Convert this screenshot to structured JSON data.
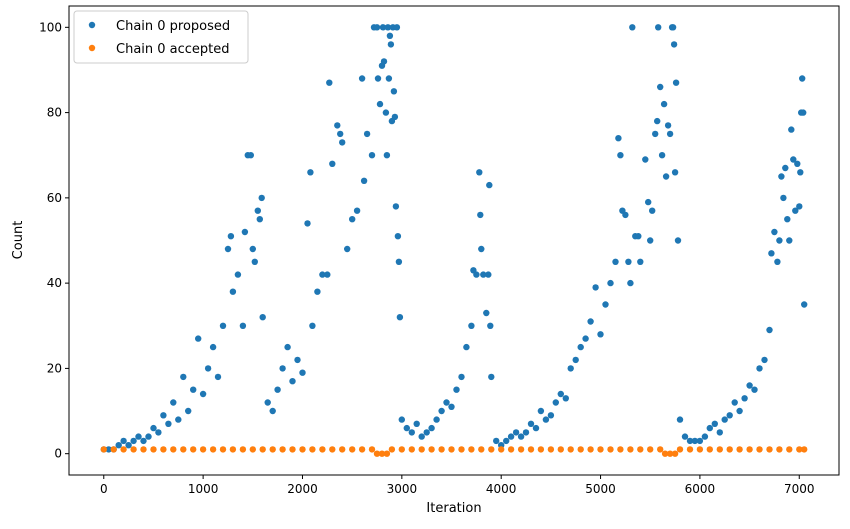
{
  "chart_data": {
    "type": "scatter",
    "title": "",
    "xlabel": "Iteration",
    "ylabel": "Count",
    "xlim": [
      -350,
      7400
    ],
    "ylim": [
      -5,
      105
    ],
    "xticks": [
      0,
      1000,
      2000,
      3000,
      4000,
      5000,
      6000,
      7000
    ],
    "yticks": [
      0,
      20,
      40,
      60,
      80,
      100
    ],
    "grid": false,
    "legend_position": "top-left",
    "series": [
      {
        "name": "Chain 0 proposed",
        "color": "#1f77b4",
        "marker": "circle",
        "points": [
          [
            0,
            1
          ],
          [
            50,
            1
          ],
          [
            100,
            1
          ],
          [
            150,
            2
          ],
          [
            200,
            3
          ],
          [
            250,
            2
          ],
          [
            300,
            3
          ],
          [
            350,
            4
          ],
          [
            400,
            3
          ],
          [
            450,
            4
          ],
          [
            500,
            6
          ],
          [
            550,
            5
          ],
          [
            600,
            9
          ],
          [
            650,
            7
          ],
          [
            700,
            12
          ],
          [
            750,
            8
          ],
          [
            800,
            18
          ],
          [
            850,
            10
          ],
          [
            900,
            15
          ],
          [
            950,
            27
          ],
          [
            1000,
            14
          ],
          [
            1050,
            20
          ],
          [
            1100,
            25
          ],
          [
            1150,
            18
          ],
          [
            1200,
            30
          ],
          [
            1250,
            48
          ],
          [
            1280,
            51
          ],
          [
            1300,
            38
          ],
          [
            1350,
            42
          ],
          [
            1400,
            30
          ],
          [
            1420,
            52
          ],
          [
            1450,
            70
          ],
          [
            1480,
            70
          ],
          [
            1500,
            48
          ],
          [
            1520,
            45
          ],
          [
            1550,
            57
          ],
          [
            1570,
            55
          ],
          [
            1590,
            60
          ],
          [
            1600,
            32
          ],
          [
            1650,
            12
          ],
          [
            1700,
            10
          ],
          [
            1750,
            15
          ],
          [
            1800,
            20
          ],
          [
            1850,
            25
          ],
          [
            1900,
            17
          ],
          [
            1950,
            22
          ],
          [
            2000,
            19
          ],
          [
            2050,
            54
          ],
          [
            2080,
            66
          ],
          [
            2100,
            30
          ],
          [
            2150,
            38
          ],
          [
            2200,
            42
          ],
          [
            2250,
            42
          ],
          [
            2270,
            87
          ],
          [
            2300,
            68
          ],
          [
            2350,
            77
          ],
          [
            2380,
            75
          ],
          [
            2400,
            73
          ],
          [
            2450,
            48
          ],
          [
            2500,
            55
          ],
          [
            2550,
            57
          ],
          [
            2600,
            88
          ],
          [
            2620,
            64
          ],
          [
            2650,
            75
          ],
          [
            2700,
            70
          ],
          [
            2720,
            100
          ],
          [
            2750,
            100
          ],
          [
            2760,
            88
          ],
          [
            2780,
            82
          ],
          [
            2800,
            91
          ],
          [
            2810,
            100
          ],
          [
            2820,
            92
          ],
          [
            2840,
            80
          ],
          [
            2850,
            70
          ],
          [
            2860,
            100
          ],
          [
            2870,
            88
          ],
          [
            2880,
            98
          ],
          [
            2890,
            96
          ],
          [
            2900,
            78
          ],
          [
            2910,
            100
          ],
          [
            2920,
            85
          ],
          [
            2930,
            79
          ],
          [
            2940,
            58
          ],
          [
            2950,
            100
          ],
          [
            2960,
            51
          ],
          [
            2970,
            45
          ],
          [
            2980,
            32
          ],
          [
            3000,
            8
          ],
          [
            3050,
            6
          ],
          [
            3100,
            5
          ],
          [
            3150,
            7
          ],
          [
            3200,
            4
          ],
          [
            3250,
            5
          ],
          [
            3300,
            6
          ],
          [
            3350,
            8
          ],
          [
            3400,
            10
          ],
          [
            3450,
            12
          ],
          [
            3500,
            11
          ],
          [
            3550,
            15
          ],
          [
            3600,
            18
          ],
          [
            3650,
            25
          ],
          [
            3700,
            30
          ],
          [
            3720,
            43
          ],
          [
            3750,
            42
          ],
          [
            3780,
            66
          ],
          [
            3790,
            56
          ],
          [
            3800,
            48
          ],
          [
            3820,
            42
          ],
          [
            3850,
            33
          ],
          [
            3870,
            42
          ],
          [
            3880,
            63
          ],
          [
            3890,
            30
          ],
          [
            3900,
            18
          ],
          [
            3950,
            3
          ],
          [
            4000,
            2
          ],
          [
            4050,
            3
          ],
          [
            4100,
            4
          ],
          [
            4150,
            5
          ],
          [
            4200,
            4
          ],
          [
            4250,
            5
          ],
          [
            4300,
            7
          ],
          [
            4350,
            6
          ],
          [
            4400,
            10
          ],
          [
            4450,
            8
          ],
          [
            4500,
            9
          ],
          [
            4550,
            12
          ],
          [
            4600,
            14
          ],
          [
            4650,
            13
          ],
          [
            4700,
            20
          ],
          [
            4750,
            22
          ],
          [
            4800,
            25
          ],
          [
            4850,
            27
          ],
          [
            4900,
            31
          ],
          [
            4950,
            39
          ],
          [
            5000,
            28
          ],
          [
            5050,
            35
          ],
          [
            5100,
            40
          ],
          [
            5150,
            45
          ],
          [
            5180,
            74
          ],
          [
            5200,
            70
          ],
          [
            5220,
            57
          ],
          [
            5250,
            56
          ],
          [
            5280,
            45
          ],
          [
            5300,
            40
          ],
          [
            5320,
            100
          ],
          [
            5350,
            51
          ],
          [
            5380,
            51
          ],
          [
            5400,
            45
          ],
          [
            5450,
            69
          ],
          [
            5480,
            59
          ],
          [
            5500,
            50
          ],
          [
            5520,
            57
          ],
          [
            5550,
            75
          ],
          [
            5570,
            78
          ],
          [
            5580,
            100
          ],
          [
            5600,
            86
          ],
          [
            5620,
            70
          ],
          [
            5640,
            82
          ],
          [
            5660,
            65
          ],
          [
            5680,
            77
          ],
          [
            5700,
            75
          ],
          [
            5720,
            100
          ],
          [
            5730,
            100
          ],
          [
            5740,
            96
          ],
          [
            5750,
            66
          ],
          [
            5760,
            87
          ],
          [
            5780,
            50
          ],
          [
            5800,
            8
          ],
          [
            5850,
            4
          ],
          [
            5900,
            3
          ],
          [
            5950,
            3
          ],
          [
            6000,
            3
          ],
          [
            6050,
            4
          ],
          [
            6100,
            6
          ],
          [
            6150,
            7
          ],
          [
            6200,
            5
          ],
          [
            6250,
            8
          ],
          [
            6300,
            9
          ],
          [
            6350,
            12
          ],
          [
            6400,
            10
          ],
          [
            6450,
            13
          ],
          [
            6500,
            16
          ],
          [
            6550,
            15
          ],
          [
            6600,
            20
          ],
          [
            6650,
            22
          ],
          [
            6700,
            29
          ],
          [
            6720,
            47
          ],
          [
            6750,
            52
          ],
          [
            6780,
            45
          ],
          [
            6800,
            50
          ],
          [
            6820,
            65
          ],
          [
            6840,
            60
          ],
          [
            6860,
            67
          ],
          [
            6880,
            55
          ],
          [
            6900,
            50
          ],
          [
            6920,
            76
          ],
          [
            6940,
            69
          ],
          [
            6960,
            57
          ],
          [
            6980,
            68
          ],
          [
            7000,
            58
          ],
          [
            7010,
            66
          ],
          [
            7020,
            80
          ],
          [
            7030,
            88
          ],
          [
            7040,
            80
          ],
          [
            7050,
            35
          ]
        ]
      },
      {
        "name": "Chain 0 accepted",
        "color": "#ff7f0e",
        "marker": "circle",
        "points": [
          [
            0,
            1
          ],
          [
            100,
            1
          ],
          [
            200,
            1
          ],
          [
            300,
            1
          ],
          [
            400,
            1
          ],
          [
            500,
            1
          ],
          [
            600,
            1
          ],
          [
            700,
            1
          ],
          [
            800,
            1
          ],
          [
            900,
            1
          ],
          [
            1000,
            1
          ],
          [
            1100,
            1
          ],
          [
            1200,
            1
          ],
          [
            1300,
            1
          ],
          [
            1400,
            1
          ],
          [
            1500,
            1
          ],
          [
            1600,
            1
          ],
          [
            1700,
            1
          ],
          [
            1800,
            1
          ],
          [
            1900,
            1
          ],
          [
            2000,
            1
          ],
          [
            2100,
            1
          ],
          [
            2200,
            1
          ],
          [
            2300,
            1
          ],
          [
            2400,
            1
          ],
          [
            2500,
            1
          ],
          [
            2600,
            1
          ],
          [
            2700,
            1
          ],
          [
            2750,
            0
          ],
          [
            2800,
            0
          ],
          [
            2850,
            0
          ],
          [
            2900,
            1
          ],
          [
            3000,
            1
          ],
          [
            3100,
            1
          ],
          [
            3200,
            1
          ],
          [
            3300,
            1
          ],
          [
            3400,
            1
          ],
          [
            3500,
            1
          ],
          [
            3600,
            1
          ],
          [
            3700,
            1
          ],
          [
            3800,
            1
          ],
          [
            3900,
            1
          ],
          [
            4000,
            1
          ],
          [
            4100,
            1
          ],
          [
            4200,
            1
          ],
          [
            4300,
            1
          ],
          [
            4400,
            1
          ],
          [
            4500,
            1
          ],
          [
            4600,
            1
          ],
          [
            4700,
            1
          ],
          [
            4800,
            1
          ],
          [
            4900,
            1
          ],
          [
            5000,
            1
          ],
          [
            5100,
            1
          ],
          [
            5200,
            1
          ],
          [
            5300,
            1
          ],
          [
            5400,
            1
          ],
          [
            5500,
            1
          ],
          [
            5600,
            1
          ],
          [
            5650,
            0
          ],
          [
            5700,
            0
          ],
          [
            5750,
            0
          ],
          [
            5800,
            1
          ],
          [
            5900,
            1
          ],
          [
            6000,
            1
          ],
          [
            6100,
            1
          ],
          [
            6200,
            1
          ],
          [
            6300,
            1
          ],
          [
            6400,
            1
          ],
          [
            6500,
            1
          ],
          [
            6600,
            1
          ],
          [
            6700,
            1
          ],
          [
            6800,
            1
          ],
          [
            6900,
            1
          ],
          [
            7000,
            1
          ],
          [
            7050,
            1
          ]
        ]
      }
    ]
  }
}
